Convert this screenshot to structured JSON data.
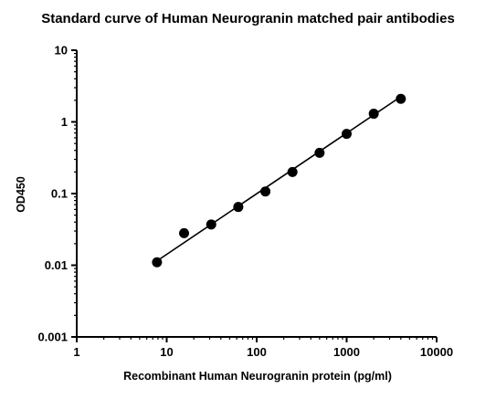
{
  "chart_data": {
    "type": "scatter",
    "title": "Standard curve of Human Neurogranin matched pair antibodies",
    "xlabel": "Recombinant Human Neurogranin protein (pg/ml)",
    "ylabel": "OD450",
    "xscale": "log",
    "yscale": "log",
    "xlim": [
      1,
      10000
    ],
    "ylim": [
      0.001,
      10
    ],
    "xticks": [
      1,
      10,
      100,
      1000,
      10000
    ],
    "xtick_labels": [
      "1",
      "10",
      "100",
      "1000",
      "10000"
    ],
    "yticks": [
      0.001,
      0.01,
      0.1,
      1,
      10
    ],
    "ytick_labels": [
      "0.001",
      "0.01",
      "0.1",
      "1",
      "10"
    ],
    "grid": false,
    "legend": "none",
    "series": [
      {
        "x": [
          7.8,
          15.6,
          31.25,
          62.5,
          125,
          250,
          500,
          1000,
          2000,
          4000
        ],
        "y": [
          0.011,
          0.028,
          0.037,
          0.065,
          0.107,
          0.2,
          0.37,
          0.68,
          1.3,
          2.1
        ],
        "color": "#000000"
      }
    ],
    "fit_line": {
      "x": [
        7.8,
        4000
      ],
      "y": [
        0.0115,
        2.25
      ],
      "color": "#000000"
    }
  }
}
